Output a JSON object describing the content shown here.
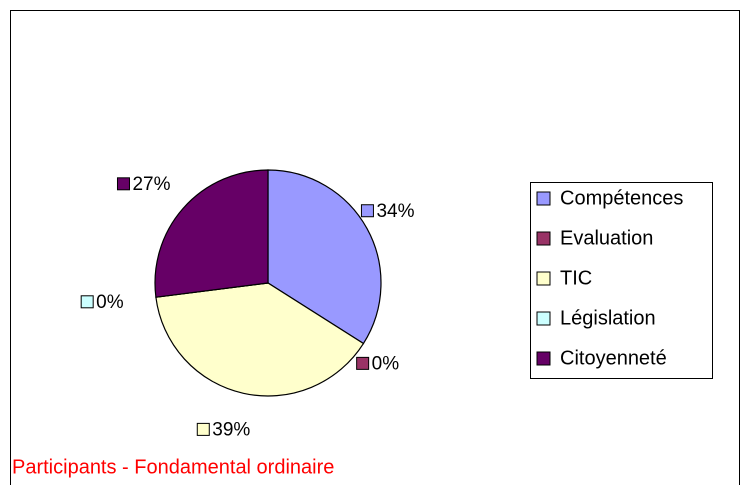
{
  "chart_data": {
    "type": "pie",
    "title": "Participants - Fondamental ordinaire",
    "categories": [
      "Compétences",
      "Evaluation",
      "TIC",
      "Législation",
      "Citoyenneté"
    ],
    "values": [
      34,
      0,
      39,
      0,
      27
    ],
    "value_labels": [
      "34%",
      "0%",
      "39%",
      "0%",
      "27%"
    ],
    "colors": [
      "#9999ff",
      "#993366",
      "#ffffcc",
      "#ccffff",
      "#660066"
    ],
    "legend": "right"
  }
}
